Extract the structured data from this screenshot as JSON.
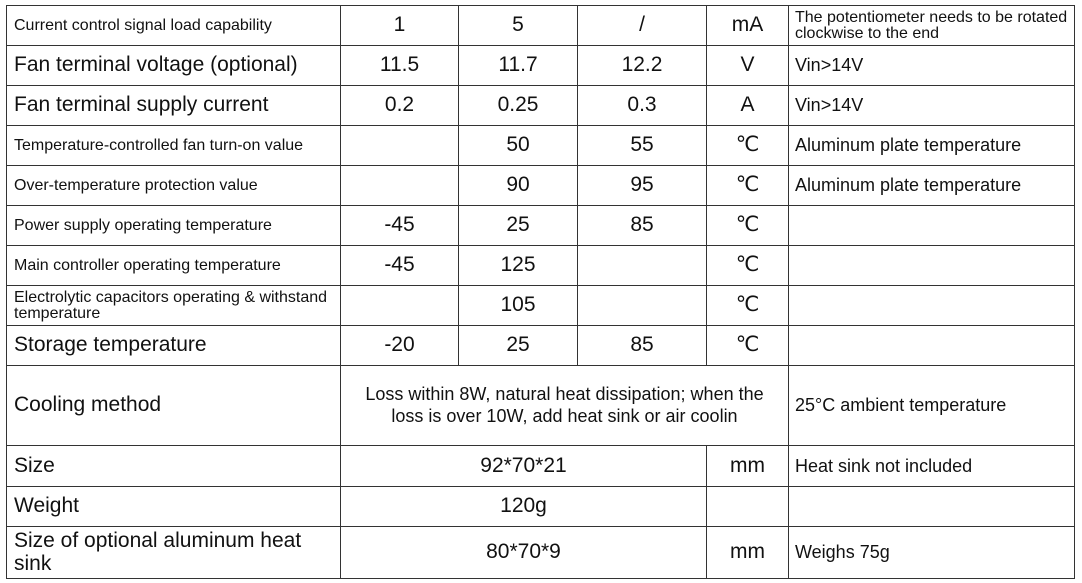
{
  "table": {
    "rows": [
      [
        "Current control signal load capability",
        "1",
        "5",
        "/",
        "mA",
        "The potentiometer needs to be rotated clockwise to the end"
      ],
      [
        "Fan terminal voltage (optional)",
        "11.5",
        "11.7",
        "12.2",
        "V",
        "Vin>14V"
      ],
      [
        "Fan terminal supply current",
        "0.2",
        "0.25",
        "0.3",
        "A",
        "Vin>14V"
      ],
      [
        "Temperature-controlled fan turn-on value",
        null,
        "50",
        "55",
        "℃",
        "Aluminum plate temperature"
      ],
      [
        "Over-temperature protection value",
        null,
        "90",
        "95",
        "℃",
        "Aluminum plate temperature"
      ],
      [
        "Power supply operating temperature",
        "-45",
        "25",
        "85",
        "℃",
        null
      ],
      [
        "Main controller operating temperature",
        "-45",
        "125",
        null,
        "℃",
        null
      ],
      [
        "Electrolytic capacitors operating & withstand temperature",
        null,
        "105",
        null,
        "℃",
        null
      ],
      [
        "Storage temperature",
        "-20",
        "25",
        "85",
        "℃",
        null
      ],
      [
        "Cooling method",
        "Loss within 8W, natural heat dissipation; when the loss is over 10W, add heat sink or air coolin",
        "25°C ambient temperature"
      ],
      [
        "Size",
        "92*70*21",
        "mm",
        "Heat sink not included"
      ],
      [
        "Weight",
        "120g",
        null,
        null
      ],
      [
        "Size of optional aluminum heat sink",
        "80*70*9",
        "mm",
        "Weighs 75g"
      ]
    ]
  }
}
